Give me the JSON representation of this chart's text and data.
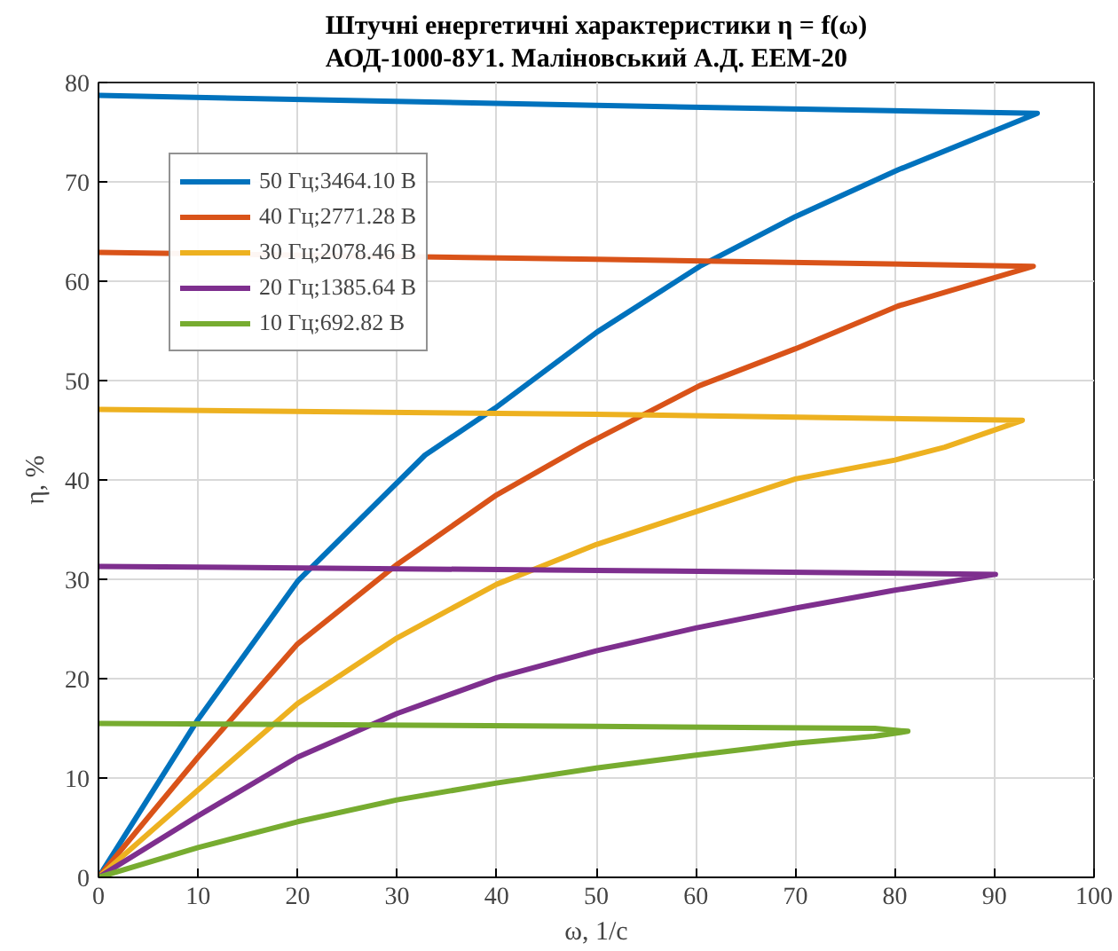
{
  "chart_data": {
    "type": "line",
    "title": "Штучні енергетичні характеристики η = f(ω)\nАОД-1000-8У1. Маліновський А.Д. ЕЕМ-20",
    "xlabel": "ω, 1/с",
    "ylabel": "η, %",
    "xlim": [
      0,
      100
    ],
    "ylim": [
      0,
      80
    ],
    "xticks": [
      0,
      10,
      20,
      30,
      40,
      50,
      60,
      70,
      80,
      90,
      100
    ],
    "yticks": [
      0,
      10,
      20,
      30,
      40,
      50,
      60,
      70,
      80
    ],
    "grid": true,
    "legend": "top left",
    "line_style": "solid",
    "marker": "none",
    "series": [
      {
        "name": "50 Гц;3464.10 В",
        "color": "#0072bd",
        "x": [
          0,
          50,
          94.3,
          80.3,
          70,
          60.4,
          50.1,
          39.8,
          32.8,
          20,
          10,
          0
        ],
        "values": [
          78.7,
          77.7,
          76.9,
          71.2,
          66.5,
          61.5,
          54.9,
          47.2,
          42.5,
          29.8,
          15.9,
          0
        ]
      },
      {
        "name": "40 Гц;2771.28 В",
        "color": "#d95319",
        "x": [
          0,
          50,
          93.9,
          80.3,
          70,
          60.4,
          48.8,
          40,
          30,
          20,
          10,
          0
        ],
        "values": [
          62.9,
          62.2,
          61.5,
          57.5,
          53.2,
          49.5,
          43.5,
          38.5,
          31.5,
          23.5,
          12.1,
          0
        ]
      },
      {
        "name": "30 Гц;2078.46 В",
        "color": "#edb120",
        "x": [
          0,
          50,
          92.8,
          85,
          80,
          70,
          60,
          50,
          40,
          30,
          20,
          10,
          0
        ],
        "values": [
          47.1,
          46.6,
          46.0,
          43.3,
          42.0,
          40.1,
          36.8,
          33.5,
          29.5,
          24.1,
          17.5,
          8.8,
          0
        ]
      },
      {
        "name": "20 Гц;1385.64 В",
        "color": "#7e2f8e",
        "x": [
          0,
          50,
          90.1,
          80,
          70,
          60,
          50,
          40,
          30,
          20,
          10,
          0
        ],
        "values": [
          31.3,
          30.9,
          30.5,
          28.9,
          27.1,
          25.1,
          22.8,
          20.1,
          16.5,
          12.1,
          6.2,
          0
        ]
      },
      {
        "name": "10 Гц;692.82 В",
        "color": "#77ac30",
        "x": [
          0,
          50,
          78,
          81.3,
          77.9,
          70,
          60,
          50,
          40,
          30,
          20,
          10,
          0
        ],
        "values": [
          15.5,
          15.2,
          15.0,
          14.7,
          14.2,
          13.5,
          12.3,
          11.0,
          9.5,
          7.8,
          5.6,
          3.0,
          0
        ]
      }
    ]
  }
}
